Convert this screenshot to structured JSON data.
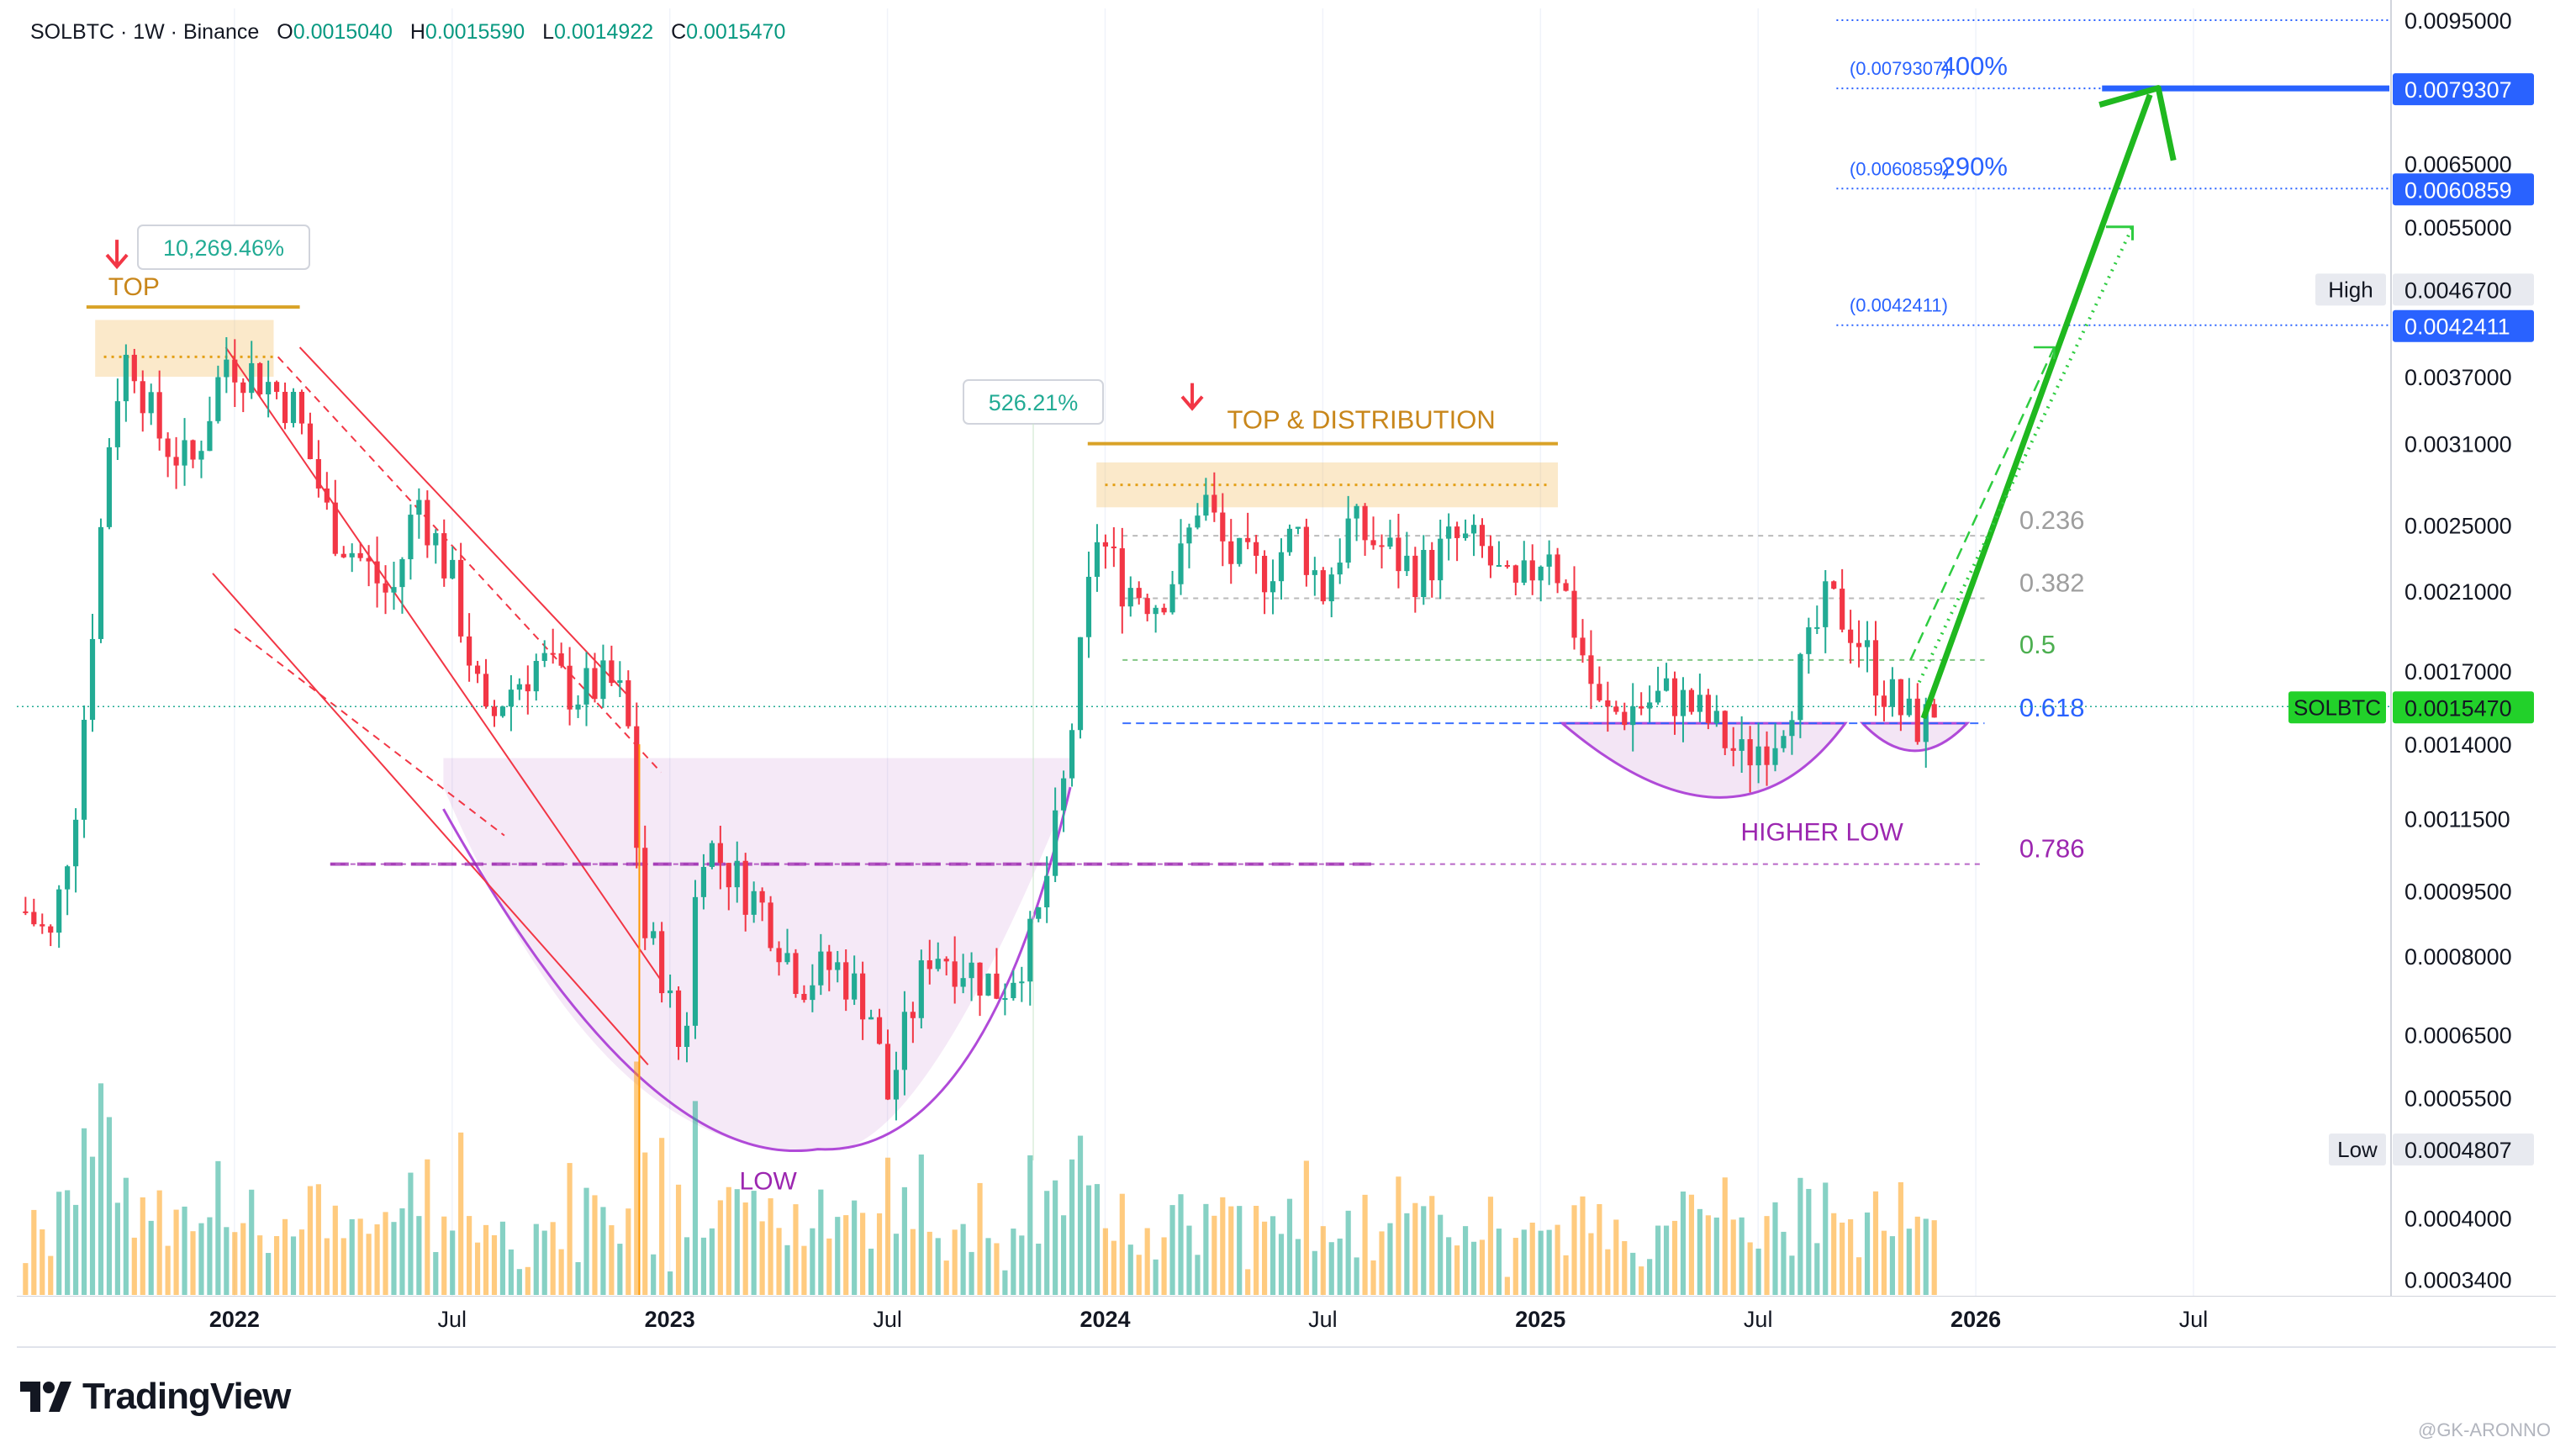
{
  "header": {
    "symbol": "SOLBTC · 1W · Binance",
    "o_label": "O",
    "o_value": "0.0015040",
    "h_label": "H",
    "h_value": "0.0015590",
    "l_label": "L",
    "l_value": "0.0014922",
    "c_label": "C",
    "c_value": "0.0015470"
  },
  "brand": {
    "name": "TradingView",
    "logo_icon": "tradingview-logo-icon"
  },
  "watermark": "@GK-ARONNO",
  "colors": {
    "up": "#22ab94",
    "down": "#f23645",
    "fib_blue": "#2962ff",
    "orange": "#e3a018",
    "purple": "#9c27b0",
    "arrow_green": "#1fb81f",
    "price_tag": "#22d12a"
  },
  "chart_data": {
    "type": "candlestick",
    "symbol": "SOLBTC",
    "interval": "1W",
    "exchange": "Binance",
    "y_scale": "log",
    "ylim": [
      0.000325,
      0.0098
    ],
    "x_ticks": [
      {
        "label": "2022",
        "t": 2022.0,
        "bold": true
      },
      {
        "label": "Jul",
        "t": 2022.5,
        "bold": false
      },
      {
        "label": "2023",
        "t": 2023.0,
        "bold": true
      },
      {
        "label": "Jul",
        "t": 2023.5,
        "bold": false
      },
      {
        "label": "2024",
        "t": 2024.0,
        "bold": true
      },
      {
        "label": "Jul",
        "t": 2024.5,
        "bold": false
      },
      {
        "label": "2025",
        "t": 2025.0,
        "bold": true
      },
      {
        "label": "Jul",
        "t": 2025.5,
        "bold": false
      },
      {
        "label": "2026",
        "t": 2026.0,
        "bold": true
      },
      {
        "label": "Jul",
        "t": 2026.5,
        "bold": false
      }
    ],
    "y_ticks": [
      "0.0095000",
      "0.0065000",
      "0.0055000",
      "0.0037000",
      "0.0031000",
      "0.0025000",
      "0.0021000",
      "0.0017000",
      "0.0014000",
      "0.0011500",
      "0.0009500",
      "0.0008000",
      "0.0006500",
      "0.0005500",
      "0.0004000",
      "0.0003400"
    ],
    "price_tags": [
      {
        "label": "0.0079307",
        "value": 0.0079307,
        "style": "blue"
      },
      {
        "label": "0.0060859",
        "value": 0.0060859,
        "style": "blue"
      },
      {
        "label": "0.0046700",
        "value": 0.00467,
        "style": "plain",
        "caption": "High"
      },
      {
        "label": "0.0042411",
        "value": 0.0042411,
        "style": "blue"
      },
      {
        "label": "0.0015470",
        "value": 0.001547,
        "style": "green",
        "caption": "SOLBTC"
      },
      {
        "label": "0.0004807",
        "value": 0.0004807,
        "style": "plain",
        "caption": "Low"
      }
    ],
    "targets": [
      {
        "level": "(0.0079307)",
        "pct": "400%",
        "value": 0.0079307
      },
      {
        "level": "(0.0060859)",
        "pct": "290%",
        "value": 0.0060859
      },
      {
        "level": "(0.0042411)",
        "pct": "",
        "value": 0.0042411
      }
    ],
    "fib_levels": [
      {
        "label": "0.236",
        "value": 0.00243
      },
      {
        "label": "0.382",
        "value": 0.00206
      },
      {
        "label": "0.5",
        "value": 0.00175
      },
      {
        "label": "0.618",
        "value": 0.00148
      },
      {
        "label": "0.786",
        "value": 0.00102
      }
    ],
    "annotations": {
      "top": "TOP",
      "gain1": "10,269.46%",
      "gain2": "526.21%",
      "distribution": "TOP & DISTRIBUTION",
      "low": "LOW",
      "higher_low": "HIGHER LOW"
    },
    "path": [
      {
        "t": 2021.52,
        "p": 0.0009
      },
      {
        "t": 2021.58,
        "p": 0.00083
      },
      {
        "t": 2021.64,
        "p": 0.00125
      },
      {
        "t": 2021.68,
        "p": 0.0021
      },
      {
        "t": 2021.72,
        "p": 0.00345
      },
      {
        "t": 2021.76,
        "p": 0.004
      },
      {
        "t": 2021.82,
        "p": 0.0032
      },
      {
        "t": 2021.9,
        "p": 0.0029
      },
      {
        "t": 2021.98,
        "p": 0.0039
      },
      {
        "t": 2022.06,
        "p": 0.0037
      },
      {
        "t": 2022.14,
        "p": 0.0034
      },
      {
        "t": 2022.22,
        "p": 0.0025
      },
      {
        "t": 2022.3,
        "p": 0.00225
      },
      {
        "t": 2022.36,
        "p": 0.00205
      },
      {
        "t": 2022.42,
        "p": 0.0027
      },
      {
        "t": 2022.5,
        "p": 0.00215
      },
      {
        "t": 2022.58,
        "p": 0.00145
      },
      {
        "t": 2022.62,
        "p": 0.0016
      },
      {
        "t": 2022.7,
        "p": 0.00175
      },
      {
        "t": 2022.78,
        "p": 0.0016
      },
      {
        "t": 2022.86,
        "p": 0.00165
      },
      {
        "t": 2022.9,
        "p": 0.00155
      },
      {
        "t": 2022.94,
        "p": 0.00085
      },
      {
        "t": 2022.98,
        "p": 0.00078
      },
      {
        "t": 2023.03,
        "p": 0.0006
      },
      {
        "t": 2023.07,
        "p": 0.0011
      },
      {
        "t": 2023.14,
        "p": 0.001
      },
      {
        "t": 2023.22,
        "p": 0.0009
      },
      {
        "t": 2023.3,
        "p": 0.00075
      },
      {
        "t": 2023.38,
        "p": 0.00078
      },
      {
        "t": 2023.46,
        "p": 0.0007
      },
      {
        "t": 2023.5,
        "p": 0.00055
      },
      {
        "t": 2023.54,
        "p": 0.00065
      },
      {
        "t": 2023.6,
        "p": 0.00082
      },
      {
        "t": 2023.68,
        "p": 0.00078
      },
      {
        "t": 2023.76,
        "p": 0.00073
      },
      {
        "t": 2023.84,
        "p": 0.00085
      },
      {
        "t": 2023.9,
        "p": 0.0012
      },
      {
        "t": 2023.94,
        "p": 0.0017
      },
      {
        "t": 2023.98,
        "p": 0.00245
      },
      {
        "t": 2024.04,
        "p": 0.00215
      },
      {
        "t": 2024.12,
        "p": 0.00205
      },
      {
        "t": 2024.18,
        "p": 0.0023
      },
      {
        "t": 2024.22,
        "p": 0.00275
      },
      {
        "t": 2024.28,
        "p": 0.0023
      },
      {
        "t": 2024.36,
        "p": 0.0022
      },
      {
        "t": 2024.44,
        "p": 0.00245
      },
      {
        "t": 2024.5,
        "p": 0.0021
      },
      {
        "t": 2024.56,
        "p": 0.0025
      },
      {
        "t": 2024.64,
        "p": 0.00235
      },
      {
        "t": 2024.72,
        "p": 0.0022
      },
      {
        "t": 2024.8,
        "p": 0.0024
      },
      {
        "t": 2024.86,
        "p": 0.00235
      },
      {
        "t": 2024.94,
        "p": 0.00205
      },
      {
        "t": 2025.02,
        "p": 0.0024
      },
      {
        "t": 2025.08,
        "p": 0.0019
      },
      {
        "t": 2025.14,
        "p": 0.0015
      },
      {
        "t": 2025.22,
        "p": 0.00155
      },
      {
        "t": 2025.3,
        "p": 0.0016
      },
      {
        "t": 2025.38,
        "p": 0.0015
      },
      {
        "t": 2025.46,
        "p": 0.00135
      },
      {
        "t": 2025.54,
        "p": 0.00145
      },
      {
        "t": 2025.6,
        "p": 0.0017
      },
      {
        "t": 2025.66,
        "p": 0.00205
      },
      {
        "t": 2025.72,
        "p": 0.0019
      },
      {
        "t": 2025.78,
        "p": 0.00165
      },
      {
        "t": 2025.84,
        "p": 0.0015
      },
      {
        "t": 2025.88,
        "p": 0.00147
      },
      {
        "t": 2025.9,
        "p": 0.001547
      }
    ]
  }
}
